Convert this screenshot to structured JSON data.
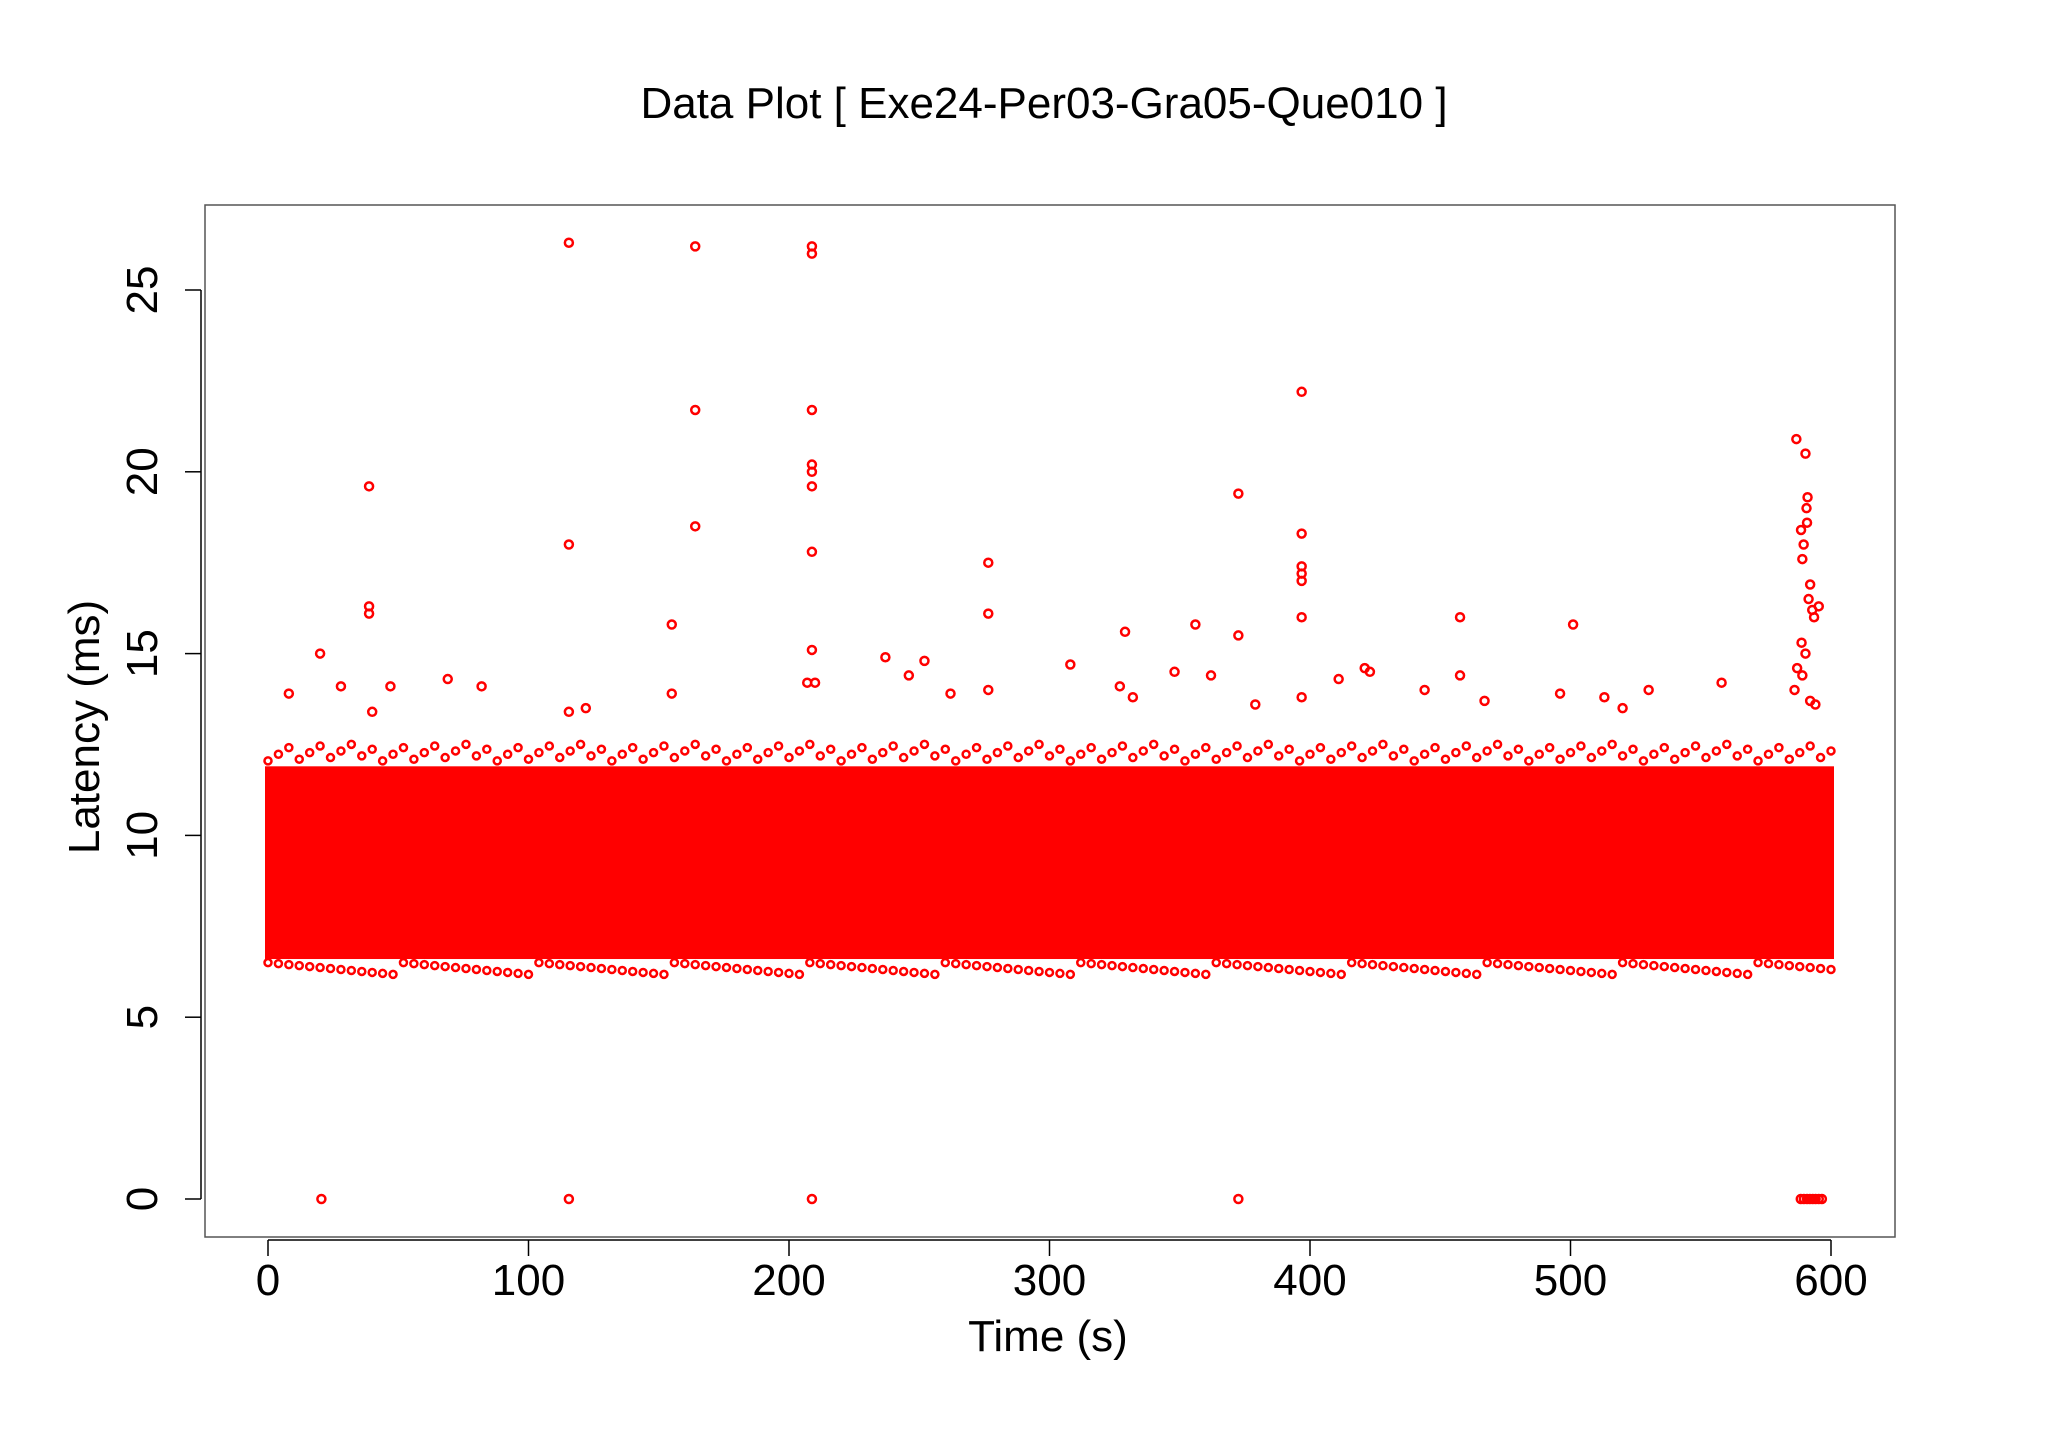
{
  "chart_data": {
    "type": "scatter",
    "title": "Data Plot [ Exe24-Per03-Gra05-Que010 ]",
    "xlabel": "Time (s)",
    "ylabel": "Latency (ms)",
    "xlim": [
      0,
      600
    ],
    "ylim": [
      0,
      26.3
    ],
    "x_ticks": [
      0,
      100,
      200,
      300,
      400,
      500,
      600
    ],
    "y_ticks": [
      0,
      5,
      10,
      15,
      20,
      25
    ],
    "grid": false,
    "legend": "none",
    "marker": "open-circle",
    "color": "#ff0000",
    "dense_band": {
      "x_range": [
        0,
        600
      ],
      "y_range": [
        6.6,
        11.9
      ]
    },
    "series": [
      {
        "points": [
          [
            115.5,
            26.3
          ],
          [
            164,
            26.2
          ],
          [
            208.8,
            26.2
          ],
          [
            208.8,
            26.0
          ],
          [
            20,
            15.0
          ],
          [
            38.8,
            19.6
          ],
          [
            38.8,
            16.3
          ],
          [
            38.8,
            16.1
          ],
          [
            40,
            13.4
          ],
          [
            8,
            13.9
          ],
          [
            28,
            14.1
          ],
          [
            47,
            14.1
          ],
          [
            69,
            14.3
          ],
          [
            82,
            14.1
          ],
          [
            115.5,
            18.0
          ],
          [
            115.5,
            13.4
          ],
          [
            122,
            13.5
          ],
          [
            155,
            15.8
          ],
          [
            155,
            13.9
          ],
          [
            164,
            21.7
          ],
          [
            164,
            18.5
          ],
          [
            208.8,
            21.7
          ],
          [
            208.8,
            20.2
          ],
          [
            208.8,
            20.0
          ],
          [
            208.8,
            19.6
          ],
          [
            208.8,
            17.8
          ],
          [
            208.8,
            15.1
          ],
          [
            207,
            14.2
          ],
          [
            210,
            14.2
          ],
          [
            237,
            14.9
          ],
          [
            252,
            14.8
          ],
          [
            246,
            14.4
          ],
          [
            262,
            13.9
          ],
          [
            276.5,
            17.5
          ],
          [
            276.5,
            16.1
          ],
          [
            276.5,
            14.0
          ],
          [
            308,
            14.7
          ],
          [
            329,
            15.6
          ],
          [
            327,
            14.1
          ],
          [
            332,
            13.8
          ],
          [
            348,
            14.5
          ],
          [
            356,
            15.8
          ],
          [
            362,
            14.4
          ],
          [
            372.5,
            19.4
          ],
          [
            372.5,
            15.5
          ],
          [
            379,
            13.6
          ],
          [
            396.8,
            22.2
          ],
          [
            396.8,
            18.3
          ],
          [
            396.8,
            17.4
          ],
          [
            396.8,
            17.2
          ],
          [
            396.8,
            17.0
          ],
          [
            396.8,
            16.0
          ],
          [
            396.8,
            13.8
          ],
          [
            411,
            14.3
          ],
          [
            421,
            14.6
          ],
          [
            423,
            14.5
          ],
          [
            444,
            14.0
          ],
          [
            457.6,
            16.0
          ],
          [
            457.6,
            14.4
          ],
          [
            467,
            13.7
          ],
          [
            501,
            15.8
          ],
          [
            496,
            13.9
          ],
          [
            513,
            13.8
          ],
          [
            520,
            13.5
          ],
          [
            530,
            14.0
          ],
          [
            558,
            14.2
          ],
          [
            586.7,
            20.9
          ],
          [
            590.2,
            20.5
          ],
          [
            591,
            19.3
          ],
          [
            590.6,
            19.0
          ],
          [
            590.8,
            18.6
          ],
          [
            588.5,
            18.4
          ],
          [
            589.5,
            18.0
          ],
          [
            589.0,
            17.6
          ],
          [
            592.0,
            16.9
          ],
          [
            591.4,
            16.5
          ],
          [
            595.3,
            16.3
          ],
          [
            592.8,
            16.2
          ],
          [
            593.5,
            16.0
          ],
          [
            588.7,
            15.3
          ],
          [
            590.2,
            15.0
          ],
          [
            587.0,
            14.6
          ],
          [
            589.0,
            14.4
          ],
          [
            586.0,
            14.0
          ],
          [
            592.0,
            13.7
          ],
          [
            594.0,
            13.6
          ],
          [
            20.5,
            0
          ],
          [
            115.5,
            0
          ],
          [
            208.8,
            0
          ],
          [
            372.5,
            0
          ],
          [
            588.4,
            0
          ],
          [
            589.6,
            0
          ],
          [
            590.8,
            0
          ],
          [
            591.9,
            0
          ],
          [
            593.0,
            0
          ],
          [
            594.1,
            0
          ],
          [
            595.3,
            0
          ],
          [
            596.5,
            0
          ]
        ]
      }
    ]
  }
}
